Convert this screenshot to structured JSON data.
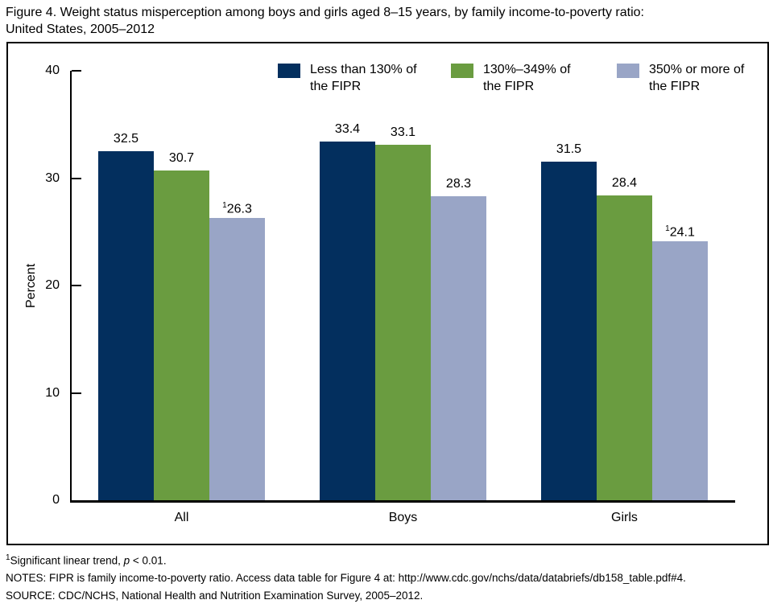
{
  "title": {
    "line1": "Figure 4. Weight status misperception among boys and girls aged 8–15 years, by family income-to-poverty ratio:",
    "line2": "United States, 2005–2012"
  },
  "chart_data": {
    "type": "bar",
    "categories": [
      "All",
      "Boys",
      "Girls"
    ],
    "series": [
      {
        "name": "Less than 130% of the FIPR",
        "color": "#032f5e",
        "values": [
          32.5,
          33.4,
          31.5
        ],
        "value_prefix_sup": [
          "",
          "",
          ""
        ]
      },
      {
        "name": "130%–349% of the FIPR",
        "color": "#6a9c40",
        "values": [
          30.7,
          33.1,
          28.4
        ],
        "value_prefix_sup": [
          "",
          "",
          ""
        ]
      },
      {
        "name": "350% or more of the FIPR",
        "color": "#99a5c6",
        "values": [
          26.3,
          28.3,
          24.1
        ],
        "value_prefix_sup": [
          "1",
          "",
          "1"
        ]
      }
    ],
    "ylabel": "Percent",
    "ylim": [
      0,
      40
    ],
    "yticks": [
      0,
      10,
      20,
      30,
      40
    ],
    "grid": false,
    "legend_position": "top",
    "annotation_note": "1 = significant linear trend"
  },
  "legend": {
    "items": [
      {
        "line1": "Less than 130% of",
        "line2": "the FIPR"
      },
      {
        "line1": "130%–349% of",
        "line2": "the FIPR"
      },
      {
        "line1": "350% or more of",
        "line2": "the FIPR"
      }
    ]
  },
  "footnotes": {
    "note1_sup": "1",
    "note1_text_a": "Significant linear trend, ",
    "note1_italic": "p",
    "note1_text_b": " < 0.01.",
    "notes_line": "NOTES: FIPR is family income-to-poverty ratio. Access data table for Figure 4 at: http://www.cdc.gov/nchs/data/databriefs/db158_table.pdf#4.",
    "source_line": "SOURCE: CDC/NCHS, National Health and Nutrition Examination Survey, 2005–2012."
  }
}
